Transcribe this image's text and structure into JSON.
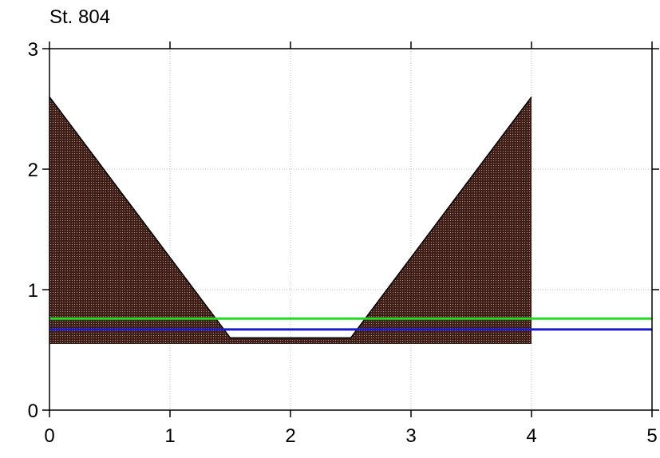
{
  "chart_data": {
    "type": "area",
    "title": "St. 804",
    "xlabel": "",
    "ylabel": "",
    "xlim": [
      0,
      5
    ],
    "ylim": [
      0,
      3
    ],
    "x_ticks": [
      0,
      1,
      2,
      3,
      4,
      5
    ],
    "y_ticks": [
      0,
      1,
      2,
      3
    ],
    "grid": true,
    "cross_section": {
      "fill_color": "#4a2a22",
      "outline_color": "#000000",
      "points": [
        [
          0,
          0.55
        ],
        [
          0,
          2.6
        ],
        [
          1.5,
          0.6
        ],
        [
          2.5,
          0.6
        ],
        [
          4,
          2.6
        ],
        [
          4,
          0.55
        ]
      ]
    },
    "lines": [
      {
        "color": "#22dd22",
        "y": 0.76,
        "x": [
          0,
          5
        ]
      },
      {
        "color": "#1a1acc",
        "y": 0.67,
        "x": [
          0,
          5
        ]
      }
    ]
  }
}
